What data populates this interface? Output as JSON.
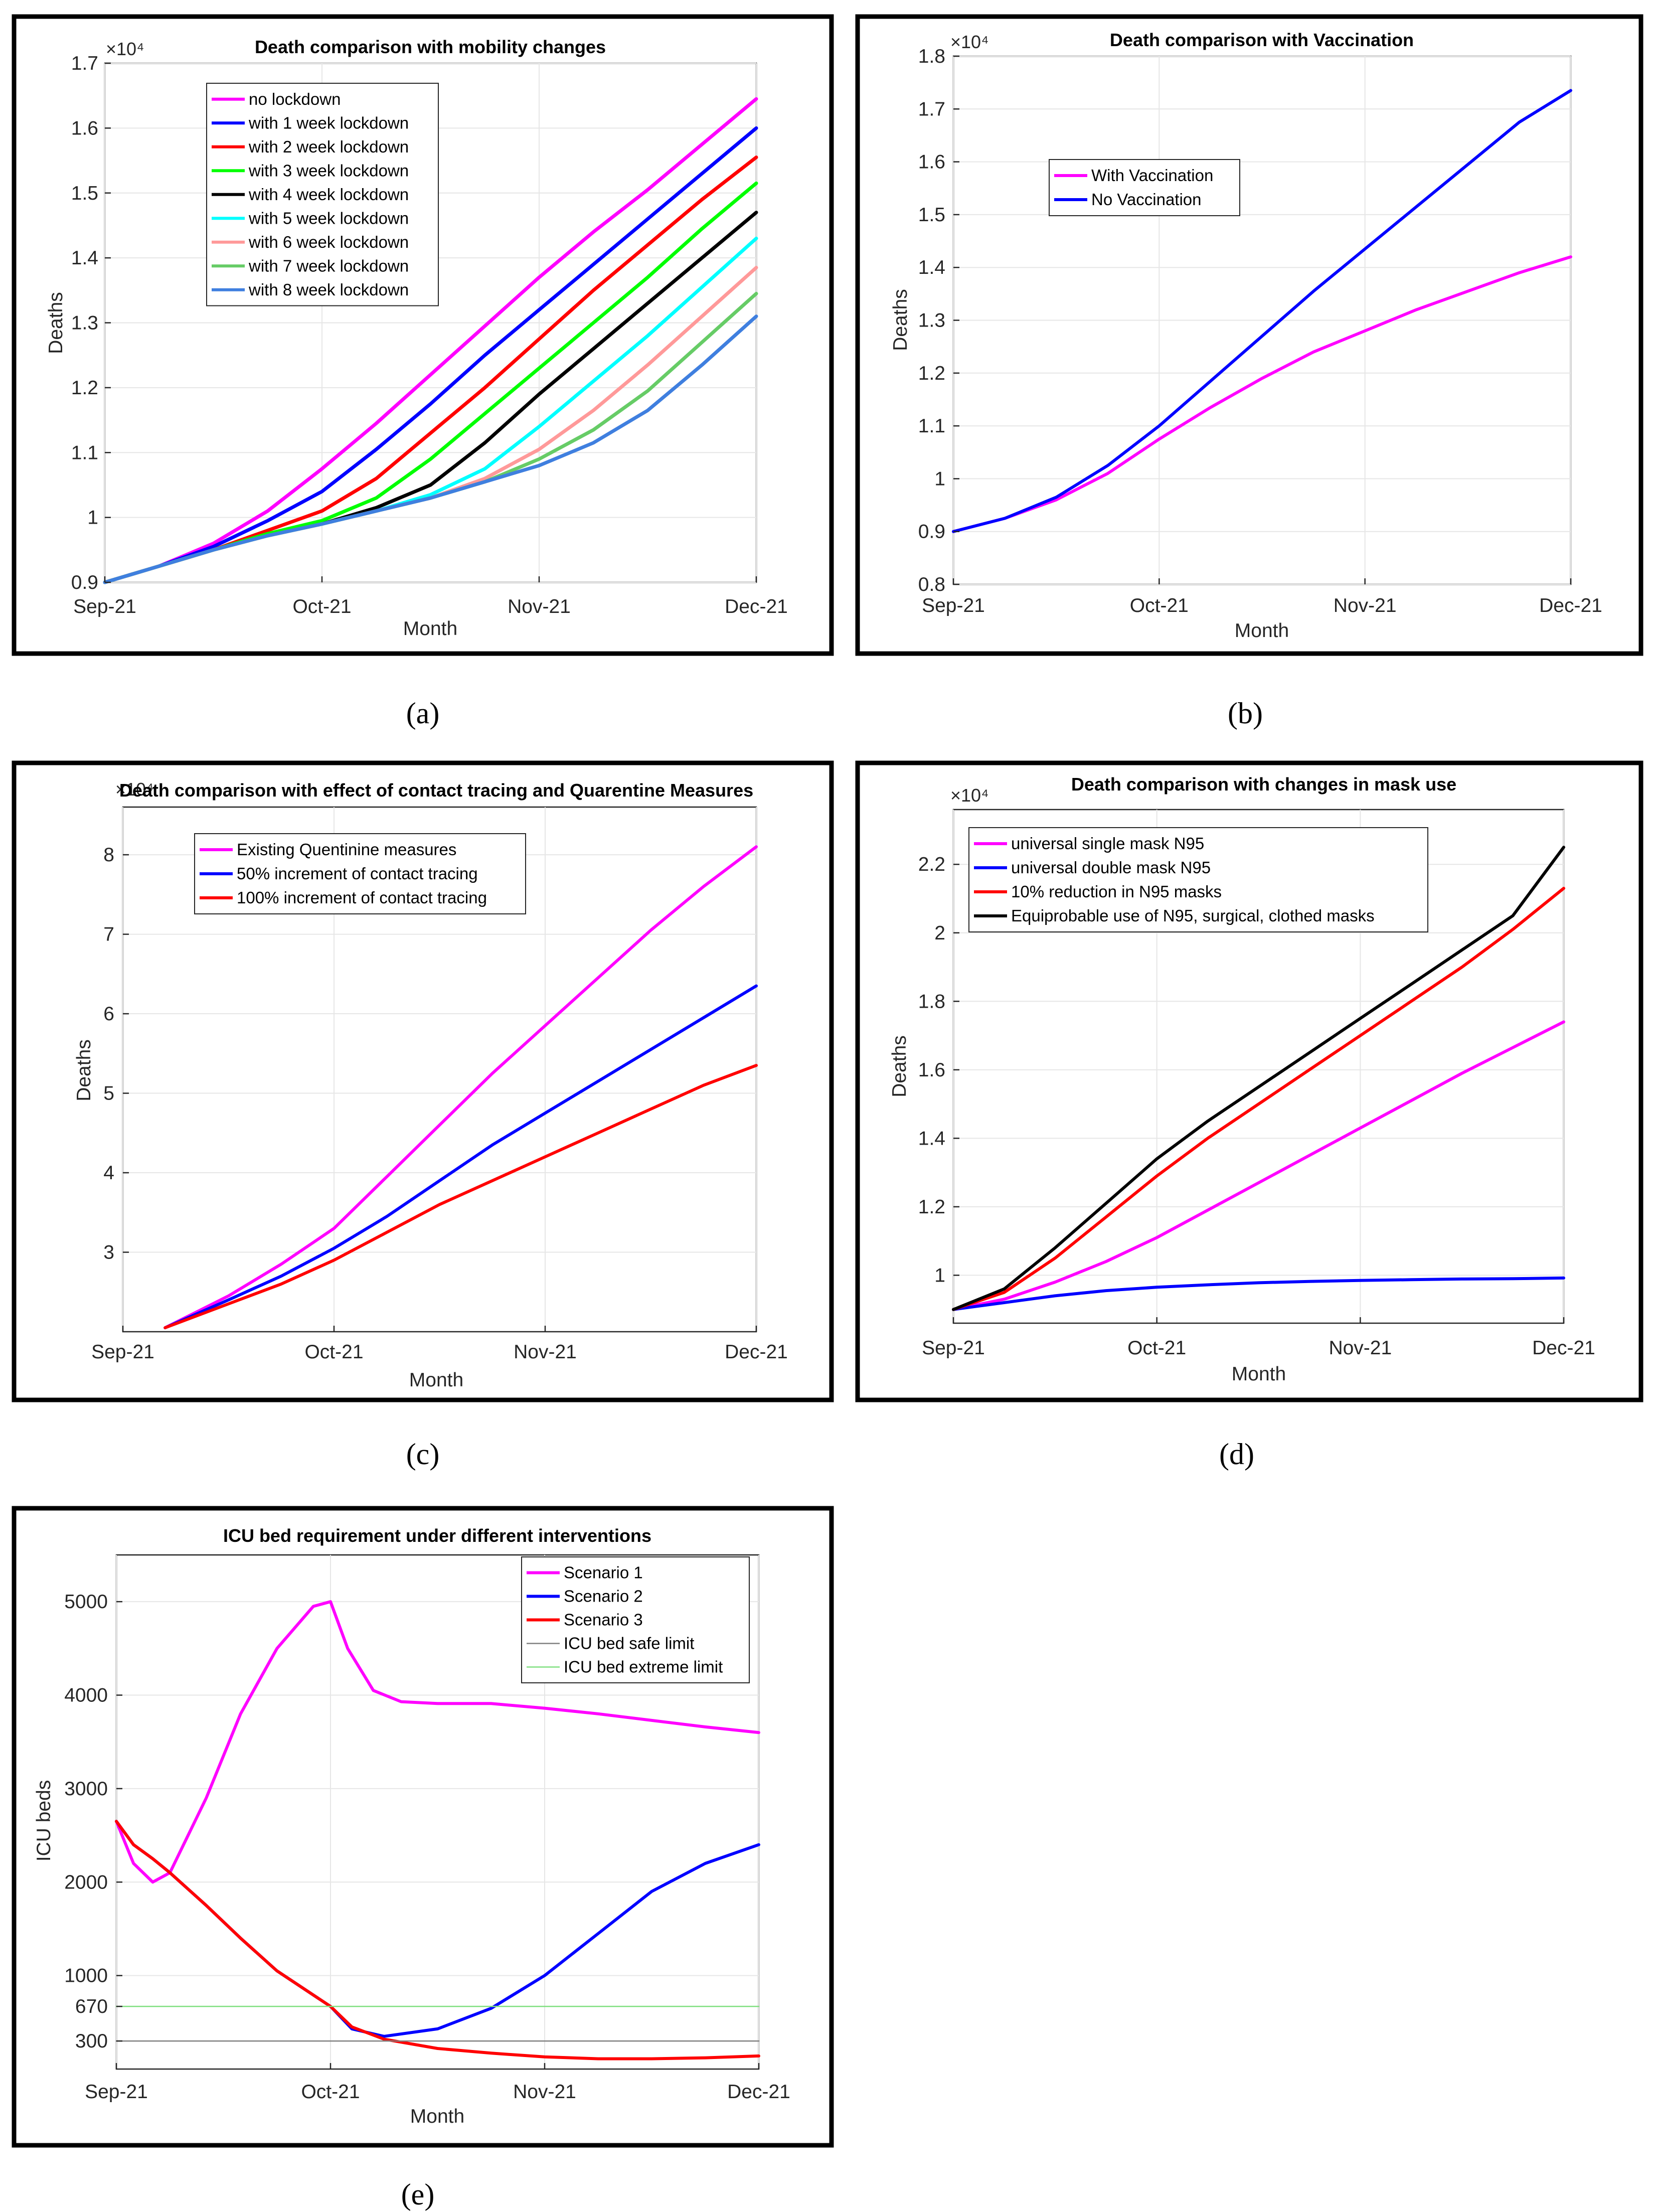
{
  "chart_data": [
    {
      "id": "a",
      "type": "line",
      "title": "Death comparison with mobility changes",
      "caption": "(a)",
      "xlabel": "Month",
      "ylabel": "Deaths",
      "x_ticks": [
        "Sep-21",
        "Oct-21",
        "Nov-21",
        "Dec-21"
      ],
      "xlim": [
        0,
        3
      ],
      "ylim": [
        0.9,
        1.7
      ],
      "y_ticks": [
        0.9,
        1,
        1.1,
        1.2,
        1.3,
        1.4,
        1.5,
        1.6,
        1.7
      ],
      "y_tick_labels": [
        "0.9",
        "1",
        "1.1",
        "1.2",
        "1.3",
        "1.4",
        "1.5",
        "1.6",
        "1.7"
      ],
      "y_multiplier": "×10⁴",
      "legend_position": "top-left",
      "series": [
        {
          "name": "no lockdown",
          "color": "#ff00ff",
          "x": [
            0,
            0.25,
            0.5,
            0.75,
            1,
            1.25,
            1.5,
            1.75,
            2,
            2.25,
            2.5,
            2.75,
            3
          ],
          "y": [
            0.9,
            0.925,
            0.96,
            1.01,
            1.075,
            1.145,
            1.22,
            1.295,
            1.37,
            1.44,
            1.505,
            1.575,
            1.645
          ]
        },
        {
          "name": "with 1 week lockdown",
          "color": "#0000ff",
          "x": [
            0,
            0.25,
            0.5,
            0.75,
            1,
            1.25,
            1.5,
            1.75,
            2,
            2.25,
            2.5,
            2.75,
            3
          ],
          "y": [
            0.9,
            0.925,
            0.955,
            0.995,
            1.04,
            1.105,
            1.175,
            1.25,
            1.32,
            1.39,
            1.46,
            1.53,
            1.6
          ]
        },
        {
          "name": "with 2 week lockdown",
          "color": "#ff0000",
          "x": [
            0,
            0.25,
            0.5,
            0.75,
            1,
            1.25,
            1.5,
            1.75,
            2,
            2.25,
            2.5,
            2.75,
            3
          ],
          "y": [
            0.9,
            0.925,
            0.95,
            0.98,
            1.01,
            1.06,
            1.13,
            1.2,
            1.275,
            1.35,
            1.42,
            1.49,
            1.555
          ]
        },
        {
          "name": "with 3 week lockdown",
          "color": "#00ff00",
          "x": [
            0,
            0.25,
            0.5,
            0.75,
            1,
            1.25,
            1.5,
            1.75,
            2,
            2.25,
            2.5,
            2.75,
            3
          ],
          "y": [
            0.9,
            0.925,
            0.95,
            0.975,
            0.995,
            1.03,
            1.09,
            1.16,
            1.23,
            1.3,
            1.37,
            1.445,
            1.515
          ]
        },
        {
          "name": "with 4 week lockdown",
          "color": "#000000",
          "x": [
            0,
            0.25,
            0.5,
            0.75,
            1,
            1.25,
            1.5,
            1.75,
            2,
            2.25,
            2.5,
            2.75,
            3
          ],
          "y": [
            0.9,
            0.925,
            0.95,
            0.972,
            0.99,
            1.015,
            1.05,
            1.115,
            1.19,
            1.26,
            1.33,
            1.4,
            1.47
          ]
        },
        {
          "name": "with 5 week lockdown",
          "color": "#00ffff",
          "x": [
            0,
            0.25,
            0.5,
            0.75,
            1,
            1.25,
            1.5,
            1.75,
            2,
            2.25,
            2.5,
            2.75,
            3
          ],
          "y": [
            0.9,
            0.925,
            0.95,
            0.972,
            0.99,
            1.01,
            1.035,
            1.075,
            1.14,
            1.21,
            1.28,
            1.355,
            1.43
          ]
        },
        {
          "name": "with 6 week lockdown",
          "color": "#ff9999",
          "x": [
            0,
            0.25,
            0.5,
            0.75,
            1,
            1.25,
            1.5,
            1.75,
            2,
            2.25,
            2.5,
            2.75,
            3
          ],
          "y": [
            0.9,
            0.925,
            0.95,
            0.972,
            0.99,
            1.01,
            1.03,
            1.06,
            1.105,
            1.165,
            1.235,
            1.31,
            1.385
          ]
        },
        {
          "name": "with 7 week lockdown",
          "color": "#66cc66",
          "x": [
            0,
            0.25,
            0.5,
            0.75,
            1,
            1.25,
            1.5,
            1.75,
            2,
            2.25,
            2.5,
            2.75,
            3
          ],
          "y": [
            0.9,
            0.925,
            0.95,
            0.972,
            0.99,
            1.01,
            1.03,
            1.055,
            1.09,
            1.135,
            1.195,
            1.27,
            1.345
          ]
        },
        {
          "name": "with 8 week lockdown",
          "color": "#3f7fdf",
          "x": [
            0,
            0.25,
            0.5,
            0.75,
            1,
            1.25,
            1.5,
            1.75,
            2,
            2.25,
            2.5,
            2.75,
            3
          ],
          "y": [
            0.9,
            0.925,
            0.95,
            0.972,
            0.99,
            1.01,
            1.03,
            1.055,
            1.08,
            1.115,
            1.165,
            1.235,
            1.31
          ]
        }
      ]
    },
    {
      "id": "b",
      "type": "line",
      "title": "Death comparison with Vaccination",
      "caption": "(b)",
      "xlabel": "Month",
      "ylabel": "Deaths",
      "x_ticks": [
        "Sep-21",
        "Oct-21",
        "Nov-21",
        "Dec-21"
      ],
      "xlim": [
        0,
        3
      ],
      "ylim": [
        0.8,
        1.8
      ],
      "y_ticks": [
        0.8,
        0.9,
        1,
        1.1,
        1.2,
        1.3,
        1.4,
        1.5,
        1.6,
        1.7,
        1.8
      ],
      "y_tick_labels": [
        "0.8",
        "0.9",
        "1",
        "1.1",
        "1.2",
        "1.3",
        "1.4",
        "1.5",
        "1.6",
        "1.7",
        "1.8"
      ],
      "y_multiplier": "×10⁴",
      "legend_position": "upper-left",
      "series": [
        {
          "name": "With Vaccination",
          "color": "#ff00ff",
          "x": [
            0,
            0.25,
            0.5,
            0.75,
            1,
            1.25,
            1.5,
            1.75,
            2,
            2.25,
            2.5,
            2.75,
            3
          ],
          "y": [
            0.9,
            0.925,
            0.96,
            1.01,
            1.075,
            1.135,
            1.19,
            1.24,
            1.28,
            1.32,
            1.355,
            1.39,
            1.42
          ]
        },
        {
          "name": "No Vaccination",
          "color": "#0000ff",
          "x": [
            0,
            0.25,
            0.5,
            0.75,
            1,
            1.25,
            1.5,
            1.75,
            2,
            2.25,
            2.5,
            2.75,
            3
          ],
          "y": [
            0.9,
            0.925,
            0.965,
            1.025,
            1.1,
            1.185,
            1.27,
            1.355,
            1.435,
            1.515,
            1.595,
            1.675,
            1.735
          ]
        }
      ]
    },
    {
      "id": "c",
      "type": "line",
      "title": "Death comparison with effect of contact tracing and Quarentine Measures",
      "caption": "(c)",
      "xlabel": "Month",
      "ylabel": "Deaths",
      "x_ticks": [
        "Sep-21",
        "Oct-21",
        "Nov-21",
        "Dec-21"
      ],
      "xlim": [
        0,
        3
      ],
      "ylim": [
        2,
        8.6
      ],
      "y_ticks": [
        3,
        4,
        5,
        6,
        7,
        8
      ],
      "y_tick_labels": [
        "3",
        "4",
        "5",
        "6",
        "7",
        "8"
      ],
      "y_multiplier": "×10⁴",
      "legend_position": "top-left",
      "series": [
        {
          "name": "Existing Quentinine measures",
          "color": "#ff00ff",
          "x": [
            0.2,
            0.5,
            0.75,
            1,
            1.25,
            1.5,
            1.75,
            2,
            2.25,
            2.5,
            2.75,
            3
          ],
          "y": [
            2.05,
            2.45,
            2.85,
            3.3,
            3.95,
            4.6,
            5.25,
            5.85,
            6.45,
            7.05,
            7.6,
            8.1
          ]
        },
        {
          "name": "50% increment of contact tracing",
          "color": "#0000ff",
          "x": [
            0.2,
            0.5,
            0.75,
            1,
            1.25,
            1.5,
            1.75,
            2,
            2.25,
            2.5,
            2.75,
            3
          ],
          "y": [
            2.05,
            2.4,
            2.7,
            3.05,
            3.45,
            3.9,
            4.35,
            4.75,
            5.15,
            5.55,
            5.95,
            6.35
          ]
        },
        {
          "name": "100% increment of contact tracing",
          "color": "#ff0000",
          "x": [
            0.2,
            0.5,
            0.75,
            1,
            1.25,
            1.5,
            1.75,
            2,
            2.25,
            2.5,
            2.75,
            3
          ],
          "y": [
            2.05,
            2.35,
            2.6,
            2.9,
            3.25,
            3.6,
            3.9,
            4.2,
            4.5,
            4.8,
            5.1,
            5.35
          ]
        }
      ]
    },
    {
      "id": "d",
      "type": "line",
      "title": "Death comparison with changes in mask use",
      "caption": "(d)",
      "xlabel": "Month",
      "ylabel": "Deaths",
      "x_ticks": [
        "Sep-21",
        "Oct-21",
        "Nov-21",
        "Dec-21"
      ],
      "xlim": [
        0,
        3
      ],
      "ylim": [
        0.86,
        2.36
      ],
      "y_ticks": [
        1,
        1.2,
        1.4,
        1.6,
        1.8,
        2,
        2.2
      ],
      "y_tick_labels": [
        "1",
        "1.2",
        "1.4",
        "1.6",
        "1.8",
        "2",
        "2.2"
      ],
      "y_multiplier": "×10⁴",
      "legend_position": "top-left",
      "series": [
        {
          "name": "universal single mask N95",
          "color": "#ff00ff",
          "x": [
            0,
            0.25,
            0.5,
            0.75,
            1,
            1.25,
            1.5,
            1.75,
            2,
            2.25,
            2.5,
            2.75,
            3
          ],
          "y": [
            0.9,
            0.93,
            0.98,
            1.04,
            1.11,
            1.19,
            1.27,
            1.35,
            1.43,
            1.51,
            1.59,
            1.665,
            1.74
          ]
        },
        {
          "name": "universal double mask N95",
          "color": "#0000ff",
          "x": [
            0,
            0.25,
            0.5,
            0.75,
            1,
            1.25,
            1.5,
            1.75,
            2,
            2.25,
            2.5,
            2.75,
            3
          ],
          "y": [
            0.9,
            0.92,
            0.94,
            0.955,
            0.965,
            0.972,
            0.978,
            0.982,
            0.985,
            0.987,
            0.989,
            0.99,
            0.992
          ]
        },
        {
          "name": "10% reduction in N95 masks",
          "color": "#ff0000",
          "x": [
            0,
            0.25,
            0.5,
            0.75,
            1,
            1.25,
            1.5,
            1.75,
            2,
            2.25,
            2.5,
            2.75,
            3
          ],
          "y": [
            0.9,
            0.95,
            1.05,
            1.17,
            1.29,
            1.4,
            1.5,
            1.6,
            1.7,
            1.8,
            1.9,
            2.01,
            2.13
          ]
        },
        {
          "name": "Equiprobable use of N95, surgical, clothed masks",
          "color": "#000000",
          "x": [
            0,
            0.25,
            0.5,
            0.75,
            1,
            1.25,
            1.5,
            1.75,
            2,
            2.25,
            2.5,
            2.75,
            3
          ],
          "y": [
            0.9,
            0.96,
            1.08,
            1.21,
            1.34,
            1.45,
            1.55,
            1.65,
            1.75,
            1.85,
            1.95,
            2.05,
            2.25
          ]
        }
      ]
    },
    {
      "id": "e",
      "type": "line",
      "title": "ICU bed requirement under different interventions",
      "caption": "(e)",
      "xlabel": "Month",
      "ylabel": "ICU beds",
      "x_ticks": [
        "Sep-21",
        "Oct-21",
        "Nov-21",
        "Dec-21"
      ],
      "xlim": [
        0,
        3
      ],
      "ylim": [
        0,
        5500
      ],
      "y_ticks": [
        300,
        670,
        1000,
        2000,
        3000,
        4000,
        5000
      ],
      "y_tick_labels": [
        "300",
        "670",
        "1000",
        "2000",
        "3000",
        "4000",
        "5000"
      ],
      "legend_position": "top-right",
      "series": [
        {
          "name": "Scenario 1",
          "color": "#ff00ff",
          "x": [
            0,
            0.08,
            0.17,
            0.25,
            0.42,
            0.58,
            0.75,
            0.92,
            1,
            1.08,
            1.2,
            1.33,
            1.5,
            1.75,
            2,
            2.25,
            2.5,
            2.75,
            3
          ],
          "y": [
            2650,
            2200,
            2000,
            2100,
            2900,
            3800,
            4500,
            4950,
            5000,
            4500,
            4050,
            3930,
            3910,
            3910,
            3860,
            3800,
            3730,
            3660,
            3600
          ]
        },
        {
          "name": "Scenario 2",
          "color": "#0000ff",
          "x": [
            0,
            0.08,
            0.17,
            0.25,
            0.42,
            0.58,
            0.75,
            1,
            1.1,
            1.25,
            1.5,
            1.75,
            2,
            2.25,
            2.5,
            2.75,
            3
          ],
          "y": [
            2650,
            2400,
            2250,
            2100,
            1750,
            1400,
            1050,
            670,
            430,
            350,
            430,
            650,
            1000,
            1450,
            1900,
            2200,
            2400
          ]
        },
        {
          "name": "Scenario 3",
          "color": "#ff0000",
          "x": [
            0,
            0.08,
            0.17,
            0.25,
            0.42,
            0.58,
            0.75,
            1,
            1.1,
            1.25,
            1.5,
            1.75,
            2,
            2.25,
            2.5,
            2.75,
            3
          ],
          "y": [
            2650,
            2400,
            2250,
            2100,
            1750,
            1400,
            1050,
            670,
            450,
            320,
            220,
            170,
            130,
            110,
            110,
            120,
            140
          ]
        },
        {
          "name": "ICU bed safe limit",
          "color": "#808080",
          "x": [
            0,
            3
          ],
          "y": [
            300,
            300
          ]
        },
        {
          "name": "ICU bed extreme limit",
          "color": "#80e080",
          "x": [
            0,
            3
          ],
          "y": [
            670,
            670
          ]
        }
      ]
    }
  ]
}
